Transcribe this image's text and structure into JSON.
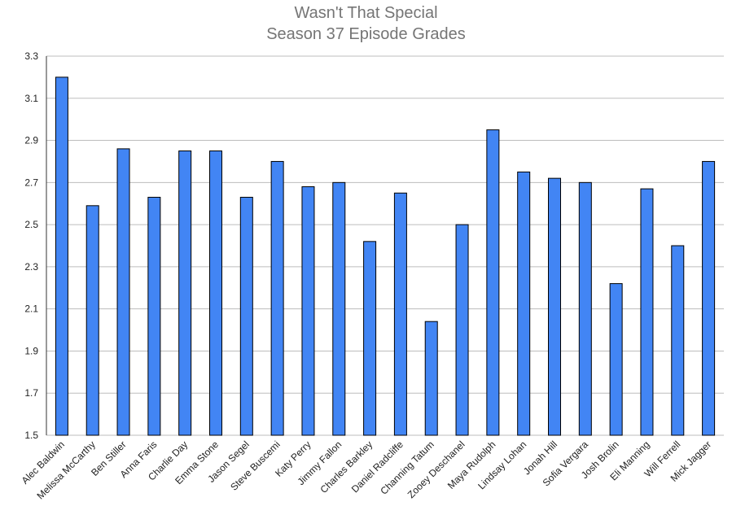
{
  "chart_data": {
    "type": "bar",
    "title": "Wasn't That Special",
    "subtitle": "Season 37 Episode Grades",
    "xlabel": "",
    "ylabel": "",
    "ylim": [
      1.5,
      3.3
    ],
    "yticks": [
      1.5,
      1.7,
      1.9,
      2.1,
      2.3,
      2.5,
      2.7,
      2.9,
      3.1,
      3.3
    ],
    "ytick_labels": [
      "1.5",
      "1.7",
      "1.9",
      "2.1",
      "2.3",
      "2.5",
      "2.7",
      "2.9",
      "3.1",
      "3.3"
    ],
    "grid": true,
    "legend": "none",
    "bar_color": "#4285f4",
    "categories": [
      "Alec Baldwin",
      "Melissa McCarthy",
      "Ben Stiller",
      "Anna Faris",
      "Charlie Day",
      "Emma Stone",
      "Jason Segel",
      "Steve Buscemi",
      "Katy Perry",
      "Jimmy Fallon",
      "Charles Barkley",
      "Daniel Radcliffe",
      "Channing Tatum",
      "Zooey Deschanel",
      "Maya Rudolph",
      "Lindsay Lohan",
      "Jonah Hill",
      "Sofia Vergara",
      "Josh Brolin",
      "Eli Manning",
      "Will Ferrell",
      "Mick Jagger"
    ],
    "values": [
      3.2,
      2.59,
      2.86,
      2.63,
      2.85,
      2.85,
      2.63,
      2.8,
      2.68,
      2.7,
      2.42,
      2.65,
      2.04,
      2.5,
      2.95,
      2.75,
      2.72,
      2.7,
      2.22,
      2.67,
      2.4,
      2.8
    ]
  }
}
